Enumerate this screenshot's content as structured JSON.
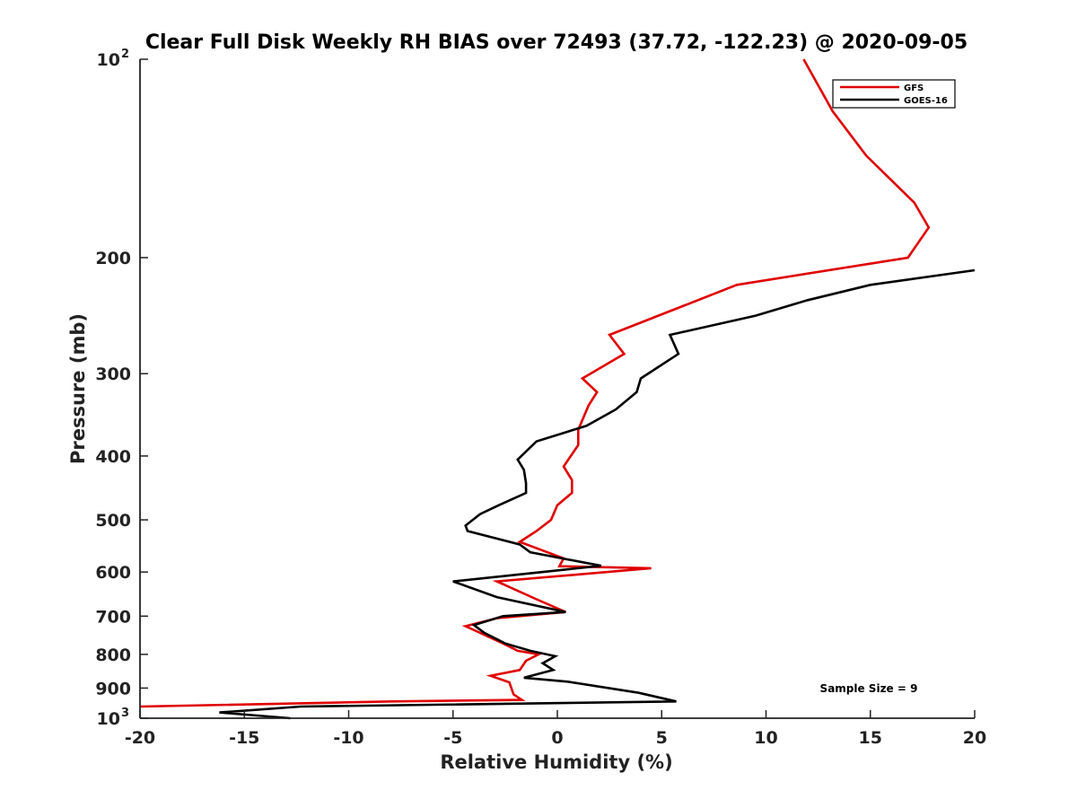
{
  "chart_data": {
    "type": "line",
    "title": "Clear Full Disk Weekly RH BIAS over 72493 (37.72, -122.23) @ 2020-09-05",
    "xlabel": "Relative Humidity (%)",
    "ylabel": "Pressure (mb)",
    "xlim": [
      -20,
      20
    ],
    "ylim": [
      100,
      1000
    ],
    "y_scale": "log",
    "y_reversed": true,
    "x_ticks": [
      -20,
      -15,
      -10,
      -5,
      0,
      5,
      10,
      15,
      20
    ],
    "x_tick_labels": [
      "-20",
      "-15",
      "-10",
      "-5",
      "0",
      "5",
      "10",
      "15",
      "20"
    ],
    "y_ticks": [
      200,
      300,
      400,
      500,
      600,
      700,
      800,
      900
    ],
    "y_tick_labels": [
      "200",
      "300",
      "400",
      "500",
      "600",
      "700",
      "800",
      "900"
    ],
    "y_end_labels": {
      "top_base": "10",
      "top_exp": "2",
      "bottom_base": "10",
      "bottom_exp": "3"
    },
    "grid": false,
    "legend_position": "top-right",
    "annotation": "Sample Size = 9",
    "series": [
      {
        "name": "GFS",
        "color": "#e00000",
        "points": [
          [
            11.8,
            100
          ],
          [
            13.2,
            120
          ],
          [
            14.8,
            140
          ],
          [
            17.1,
            165
          ],
          [
            17.8,
            180
          ],
          [
            16.8,
            200
          ],
          [
            8.6,
            220
          ],
          [
            2.5,
            262
          ],
          [
            3.2,
            280
          ],
          [
            1.2,
            305
          ],
          [
            1.9,
            320
          ],
          [
            1.5,
            335
          ],
          [
            1.0,
            365
          ],
          [
            1.0,
            385
          ],
          [
            0.3,
            415
          ],
          [
            0.7,
            435
          ],
          [
            0.7,
            455
          ],
          [
            0.0,
            475
          ],
          [
            -0.3,
            500
          ],
          [
            -1.0,
            520
          ],
          [
            -1.8,
            540
          ],
          [
            0.3,
            572
          ],
          [
            0.1,
            588
          ],
          [
            4.5,
            592
          ],
          [
            -2.9,
            620
          ],
          [
            -1.0,
            660
          ],
          [
            0.4,
            690
          ],
          [
            -2.9,
            705
          ],
          [
            -4.4,
            725
          ],
          [
            -3.7,
            742
          ],
          [
            -2.6,
            770
          ],
          [
            -1.9,
            790
          ],
          [
            -0.9,
            800
          ],
          [
            -1.5,
            818
          ],
          [
            -1.8,
            845
          ],
          [
            -3.2,
            862
          ],
          [
            -2.3,
            882
          ],
          [
            -2.1,
            920
          ],
          [
            -1.7,
            938
          ],
          [
            -7.9,
            943
          ],
          [
            -20.0,
            960
          ]
        ]
      },
      {
        "name": "GOES-16",
        "color": "#000000",
        "points": [
          [
            20.0,
            209
          ],
          [
            15.0,
            220
          ],
          [
            12.0,
            232
          ],
          [
            9.5,
            245
          ],
          [
            5.4,
            262
          ],
          [
            5.8,
            280
          ],
          [
            4.0,
            305
          ],
          [
            3.8,
            320
          ],
          [
            2.8,
            340
          ],
          [
            1.4,
            360
          ],
          [
            -1.0,
            380
          ],
          [
            -1.9,
            405
          ],
          [
            -1.6,
            420
          ],
          [
            -1.5,
            440
          ],
          [
            -1.5,
            455
          ],
          [
            -2.8,
            475
          ],
          [
            -3.7,
            490
          ],
          [
            -4.4,
            510
          ],
          [
            -4.3,
            520
          ],
          [
            -1.8,
            545
          ],
          [
            -1.3,
            560
          ],
          [
            2.1,
            587
          ],
          [
            -5.0,
            620
          ],
          [
            -2.9,
            655
          ],
          [
            0.4,
            690
          ],
          [
            -2.6,
            700
          ],
          [
            -4.0,
            722
          ],
          [
            -3.5,
            742
          ],
          [
            -2.5,
            770
          ],
          [
            -1.3,
            790
          ],
          [
            -0.1,
            805
          ],
          [
            -0.7,
            825
          ],
          [
            -0.2,
            845
          ],
          [
            -1.6,
            868
          ],
          [
            0.5,
            880
          ],
          [
            3.9,
            915
          ],
          [
            5.7,
            943
          ],
          [
            -12.3,
            960
          ],
          [
            -16.2,
            980
          ],
          [
            -12.8,
            1000
          ]
        ]
      }
    ]
  }
}
